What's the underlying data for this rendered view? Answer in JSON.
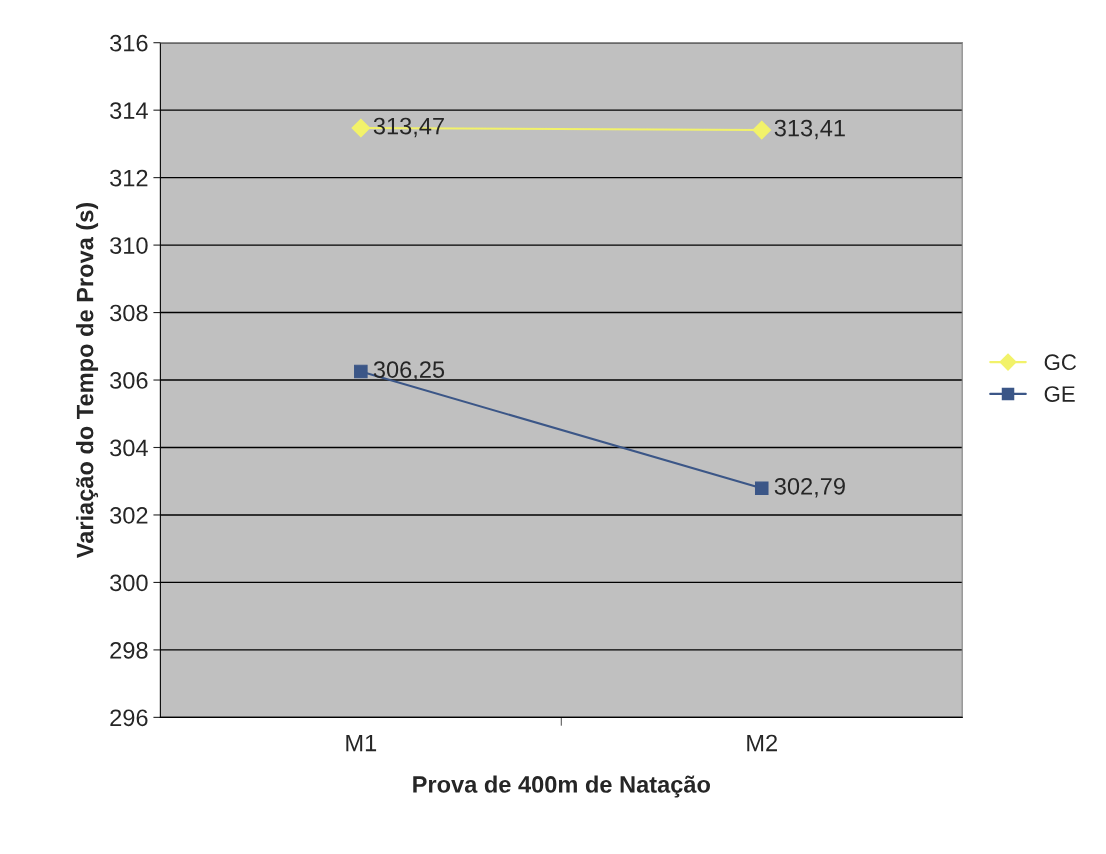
{
  "chart_data": {
    "type": "line",
    "xlabel": "Prova de 400m de Natação",
    "ylabel": "Variação do Tempo de Prova (s)",
    "categories": [
      "M1",
      "M2"
    ],
    "series": [
      {
        "name": "GC",
        "color": "#f2f26a",
        "marker": "diamond",
        "values": [
          313.47,
          313.41
        ],
        "value_labels": [
          "313,47",
          "313,41"
        ]
      },
      {
        "name": "GE",
        "color": "#3b5687",
        "marker": "square",
        "values": [
          306.25,
          302.79
        ],
        "value_labels": [
          "306,25",
          "302,79"
        ]
      }
    ],
    "ylim": [
      296,
      316
    ],
    "yticks": [
      296,
      298,
      300,
      302,
      304,
      306,
      308,
      310,
      312,
      314,
      316
    ],
    "grid": "y",
    "legend": "right"
  }
}
